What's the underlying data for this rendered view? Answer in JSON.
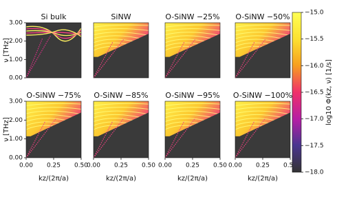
{
  "chart_data": [
    {
      "type": "heatmap",
      "title": "Si bulk",
      "xlim": [
        0,
        0.5
      ],
      "ylim": [
        0,
        3
      ],
      "ylabel": "ν [THz]",
      "yticks": [
        {
          "value": 0,
          "label": "0.00"
        },
        {
          "value": 1,
          "label": "1.00"
        },
        {
          "value": 2,
          "label": "2.00"
        },
        {
          "value": 3,
          "label": "3.00"
        }
      ]
    },
    {
      "type": "heatmap",
      "title": "SiNW",
      "xlim": [
        0,
        0.5
      ],
      "ylim": [
        0,
        3
      ]
    },
    {
      "type": "heatmap",
      "title": "O-SiNW −25%",
      "xlim": [
        0,
        0.5
      ],
      "ylim": [
        0,
        3
      ]
    },
    {
      "type": "heatmap",
      "title": "O-SiNW −50%",
      "xlim": [
        0,
        0.5
      ],
      "ylim": [
        0,
        3
      ]
    },
    {
      "type": "heatmap",
      "title": "O-SiNW −75%",
      "xlim": [
        0,
        0.5
      ],
      "ylim": [
        0,
        3
      ],
      "ylabel": "ν [THz]",
      "yticks": [
        {
          "value": 0,
          "label": "0.00"
        },
        {
          "value": 1,
          "label": "1.00"
        },
        {
          "value": 2,
          "label": "2.00"
        },
        {
          "value": 3,
          "label": "3.00"
        }
      ],
      "xlabel": "kz/(2π/a)",
      "xticks": [
        {
          "value": 0,
          "label": "0.00"
        },
        {
          "value": 0.25,
          "label": "0.25"
        },
        {
          "value": 0.5,
          "label": "0.50"
        }
      ]
    },
    {
      "type": "heatmap",
      "title": "O-SiNW −85%",
      "xlim": [
        0,
        0.5
      ],
      "ylim": [
        0,
        3
      ],
      "xlabel": "kz/(2π/a)",
      "xticks": [
        {
          "value": 0,
          "label": "0.00"
        },
        {
          "value": 0.25,
          "label": "0.25"
        },
        {
          "value": 0.5,
          "label": "0.50"
        }
      ]
    },
    {
      "type": "heatmap",
      "title": "O-SiNW −95%",
      "xlim": [
        0,
        0.5
      ],
      "ylim": [
        0,
        3
      ],
      "xlabel": "kz/(2π/a)",
      "xticks": [
        {
          "value": 0,
          "label": "0.00"
        },
        {
          "value": 0.25,
          "label": "0.25"
        },
        {
          "value": 0.5,
          "label": "0.50"
        }
      ]
    },
    {
      "type": "heatmap",
      "title": "O-SiNW −100%",
      "xlim": [
        0,
        0.5
      ],
      "ylim": [
        0,
        3
      ],
      "xlabel": "kz/(2π/a)",
      "xticks": [
        {
          "value": 0,
          "label": "0.00"
        },
        {
          "value": 0.25,
          "label": "0.25"
        },
        {
          "value": 0.5,
          "label": "0.50"
        }
      ]
    },
    {
      "type": "colorbar",
      "label": "log10 Φ(kz, ν) [1/s]",
      "ylim": [
        -18,
        -15
      ],
      "yticks": [
        {
          "value": -15,
          "label": "−15.0"
        },
        {
          "value": -15.5,
          "label": "−15.5"
        },
        {
          "value": -16,
          "label": "−16.0"
        },
        {
          "value": -16.5,
          "label": "−16.5"
        },
        {
          "value": -17,
          "label": "−17.0"
        },
        {
          "value": -17.5,
          "label": "−17.5"
        },
        {
          "value": -18,
          "label": "−18.0"
        }
      ]
    }
  ]
}
